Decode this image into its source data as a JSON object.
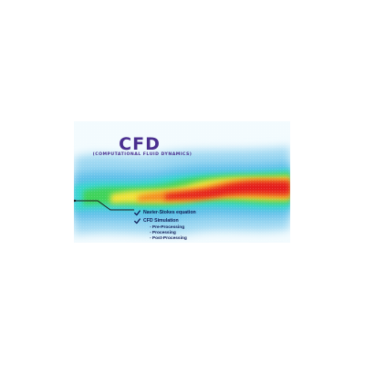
{
  "banner": {
    "title": "CFD",
    "subtitle": "(COMPUTATIONAL FLUID DYNAMICS)",
    "checklist": [
      {
        "label": "Navier-Stokes equation",
        "icon": "check-icon"
      },
      {
        "label": "CFD Simulation",
        "icon": "check-icon",
        "steps": [
          "- Pre-Processing",
          "- Processing",
          "- Post-Processing"
        ]
      }
    ],
    "colors": {
      "title": "#4a2f8f",
      "text": "#0e1a55",
      "check": "#0e1a55",
      "field_low": "#7fcdf0",
      "field_mid": "#2fd36a",
      "field_high": "#e81b1b"
    }
  }
}
